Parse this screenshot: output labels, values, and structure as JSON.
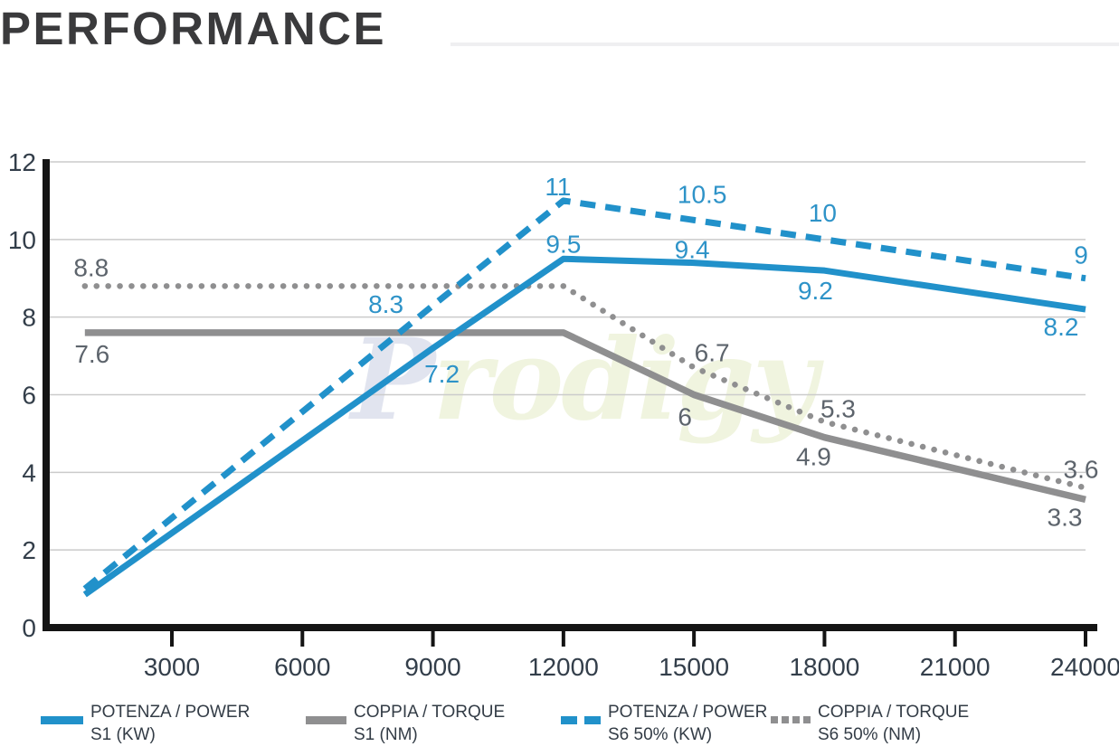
{
  "header": {
    "title": "PERFORMANCE"
  },
  "watermark": {
    "first_letter": "P",
    "rest": "rodigy"
  },
  "chart_data": {
    "type": "line",
    "title": "PERFORMANCE",
    "xlabel": "",
    "ylabel": "",
    "x_ticks": [
      "3000",
      "6000",
      "9000",
      "12000",
      "15000",
      "18000",
      "21000",
      "24000"
    ],
    "y_ticks": [
      "0",
      "2",
      "4",
      "6",
      "8",
      "10",
      "12"
    ],
    "x_min": 1000,
    "x_max": 24000,
    "ylim": [
      0,
      12
    ],
    "grid": true,
    "legend_position": "bottom",
    "colors": {
      "power_blue": "#2191ca",
      "torque_gray": "#8f8f90",
      "power_label": "#2e93c8",
      "torque_label": "#5d646c",
      "axis_black": "#141414",
      "grid_line": "#cbcbcb",
      "tick_label": "#333e4a"
    },
    "series": [
      {
        "id": "power-s1",
        "legend": [
          "POTENZA / POWER",
          "S1 (KW)"
        ],
        "style": "solid",
        "color_key": "power_blue",
        "label_color_key": "power_label",
        "points": [
          {
            "rpm": 1000,
            "value": 0.85
          },
          {
            "rpm": 9000,
            "value": 7.2,
            "label": "7.2",
            "offset": [
              10,
              28
            ]
          },
          {
            "rpm": 12000,
            "value": 9.5,
            "label": "9.5",
            "offset": [
              0,
              -17
            ]
          },
          {
            "rpm": 15000,
            "value": 9.4,
            "label": "9.4",
            "offset": [
              -2,
              -15
            ]
          },
          {
            "rpm": 18000,
            "value": 9.2,
            "label": "9.2",
            "offset": [
              -10,
              22
            ]
          },
          {
            "rpm": 24000,
            "value": 8.2,
            "label": "8.2",
            "offset": [
              -27,
              19
            ]
          }
        ]
      },
      {
        "id": "torque-s1",
        "legend": [
          "COPPIA / TORQUE",
          "S1 (NM)"
        ],
        "style": "solid",
        "color_key": "torque_gray",
        "label_color_key": "torque_label",
        "points": [
          {
            "rpm": 1000,
            "value": 7.6,
            "label": "7.6",
            "offset": [
              8,
              23
            ]
          },
          {
            "rpm": 12000,
            "value": 7.6
          },
          {
            "rpm": 15000,
            "value": 6,
            "label": "6",
            "offset": [
              -10,
              24
            ]
          },
          {
            "rpm": 18000,
            "value": 4.9,
            "label": "4.9",
            "offset": [
              -12,
              21
            ]
          },
          {
            "rpm": 24000,
            "value": 3.3,
            "label": "3.3",
            "offset": [
              -23,
              19
            ]
          }
        ]
      },
      {
        "id": "power-s6",
        "legend": [
          "POTENZA / POWER",
          "S6 50% (KW)"
        ],
        "style": "dashed",
        "color_key": "power_blue",
        "label_color_key": "power_label",
        "points": [
          {
            "rpm": 1000,
            "value": 1.0
          },
          {
            "rpm": 9000,
            "value": 8.3,
            "label": "8.3",
            "offset": [
              -52,
              -2
            ]
          },
          {
            "rpm": 12000,
            "value": 11,
            "label": "11",
            "offset": [
              -6,
              -16
            ]
          },
          {
            "rpm": 15000,
            "value": 10.5,
            "label": "10.5",
            "offset": [
              9,
              -29
            ]
          },
          {
            "rpm": 18000,
            "value": 10,
            "label": "10",
            "offset": [
              -2,
              -30
            ]
          },
          {
            "rpm": 24000,
            "value": 9,
            "label": "9",
            "offset": [
              -5,
              -26
            ]
          }
        ]
      },
      {
        "id": "torque-s6",
        "legend": [
          "COPPIA / TORQUE",
          "S6 50% (NM)"
        ],
        "style": "dotted",
        "color_key": "torque_gray",
        "label_color_key": "torque_label",
        "points": [
          {
            "rpm": 1000,
            "value": 8.8,
            "label": "8.8",
            "offset": [
              7,
              -21
            ]
          },
          {
            "rpm": 12000,
            "value": 8.8
          },
          {
            "rpm": 15000,
            "value": 6.7,
            "label": "6.7",
            "offset": [
              20,
              -17
            ]
          },
          {
            "rpm": 18000,
            "value": 5.3,
            "label": "5.3",
            "offset": [
              15,
              -15
            ]
          },
          {
            "rpm": 24000,
            "value": 3.6,
            "label": "3.6",
            "offset": [
              -5,
              -21
            ]
          }
        ]
      }
    ]
  }
}
